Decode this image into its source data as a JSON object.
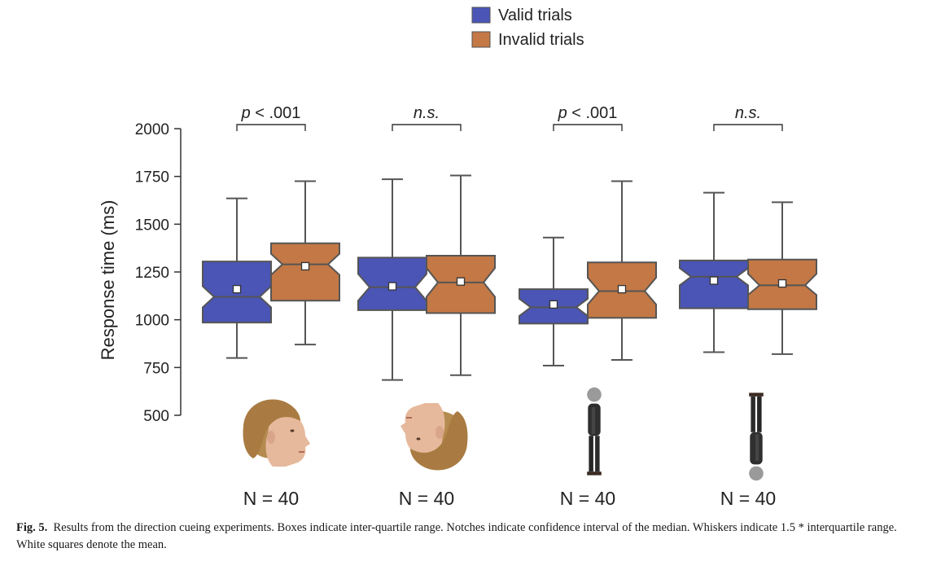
{
  "chart_data": {
    "type": "boxplot",
    "ylabel": "Response time (ms)",
    "ylim": [
      500,
      2000
    ],
    "yticks": [
      500,
      750,
      1000,
      1250,
      1500,
      1750,
      2000
    ],
    "grid": false,
    "legend": {
      "placement": "top-center",
      "entries": [
        {
          "name": "Valid trials",
          "color": "#4a55b5"
        },
        {
          "name": "Invalid trials",
          "color": "#c37845"
        }
      ]
    },
    "groups": [
      {
        "significance": "p < .001",
        "significance_italic": "p",
        "n_label": "N = 40",
        "stimulus_icon": "upright-face-icon",
        "boxes": [
          {
            "series": "Valid trials",
            "whisker_low": 800,
            "q1": 985,
            "median": 1120,
            "q3": 1305,
            "whisker_high": 1635,
            "mean": 1160,
            "notch_low": 1065,
            "notch_high": 1175
          },
          {
            "series": "Invalid trials",
            "whisker_low": 870,
            "q1": 1100,
            "median": 1290,
            "q3": 1400,
            "whisker_high": 1725,
            "mean": 1280,
            "notch_low": 1235,
            "notch_high": 1345
          }
        ]
      },
      {
        "significance": "n.s.",
        "n_label": "N = 40",
        "stimulus_icon": "inverted-face-icon",
        "boxes": [
          {
            "series": "Valid trials",
            "whisker_low": 685,
            "q1": 1050,
            "median": 1170,
            "q3": 1325,
            "whisker_high": 1735,
            "mean": 1175,
            "notch_low": 1100,
            "notch_high": 1240
          },
          {
            "series": "Invalid trials",
            "whisker_low": 710,
            "q1": 1035,
            "median": 1195,
            "q3": 1335,
            "whisker_high": 1755,
            "mean": 1200,
            "notch_low": 1120,
            "notch_high": 1270
          }
        ]
      },
      {
        "significance": "p < .001",
        "significance_italic": "p",
        "n_label": "N = 40",
        "stimulus_icon": "upright-body-icon",
        "boxes": [
          {
            "series": "Valid trials",
            "whisker_low": 760,
            "q1": 980,
            "median": 1065,
            "q3": 1160,
            "whisker_high": 1430,
            "mean": 1080,
            "notch_low": 1020,
            "notch_high": 1110
          },
          {
            "series": "Invalid trials",
            "whisker_low": 790,
            "q1": 1010,
            "median": 1150,
            "q3": 1300,
            "whisker_high": 1725,
            "mean": 1160,
            "notch_low": 1080,
            "notch_high": 1220
          }
        ]
      },
      {
        "significance": "n.s.",
        "n_label": "N = 40",
        "stimulus_icon": "inverted-body-icon",
        "boxes": [
          {
            "series": "Valid trials",
            "whisker_low": 830,
            "q1": 1060,
            "median": 1225,
            "q3": 1310,
            "whisker_high": 1665,
            "mean": 1205,
            "notch_low": 1180,
            "notch_high": 1270
          },
          {
            "series": "Invalid trials",
            "whisker_low": 820,
            "q1": 1055,
            "median": 1180,
            "q3": 1315,
            "whisker_high": 1615,
            "mean": 1190,
            "notch_low": 1130,
            "notch_high": 1240
          }
        ]
      }
    ]
  },
  "caption": {
    "label": "Fig. 5.",
    "text": "Results from the direction cueing experiments. Boxes indicate inter-quartile range. Notches indicate confidence interval of the median. Whiskers indicate 1.5 * interquartile range. White squares denote the mean."
  }
}
